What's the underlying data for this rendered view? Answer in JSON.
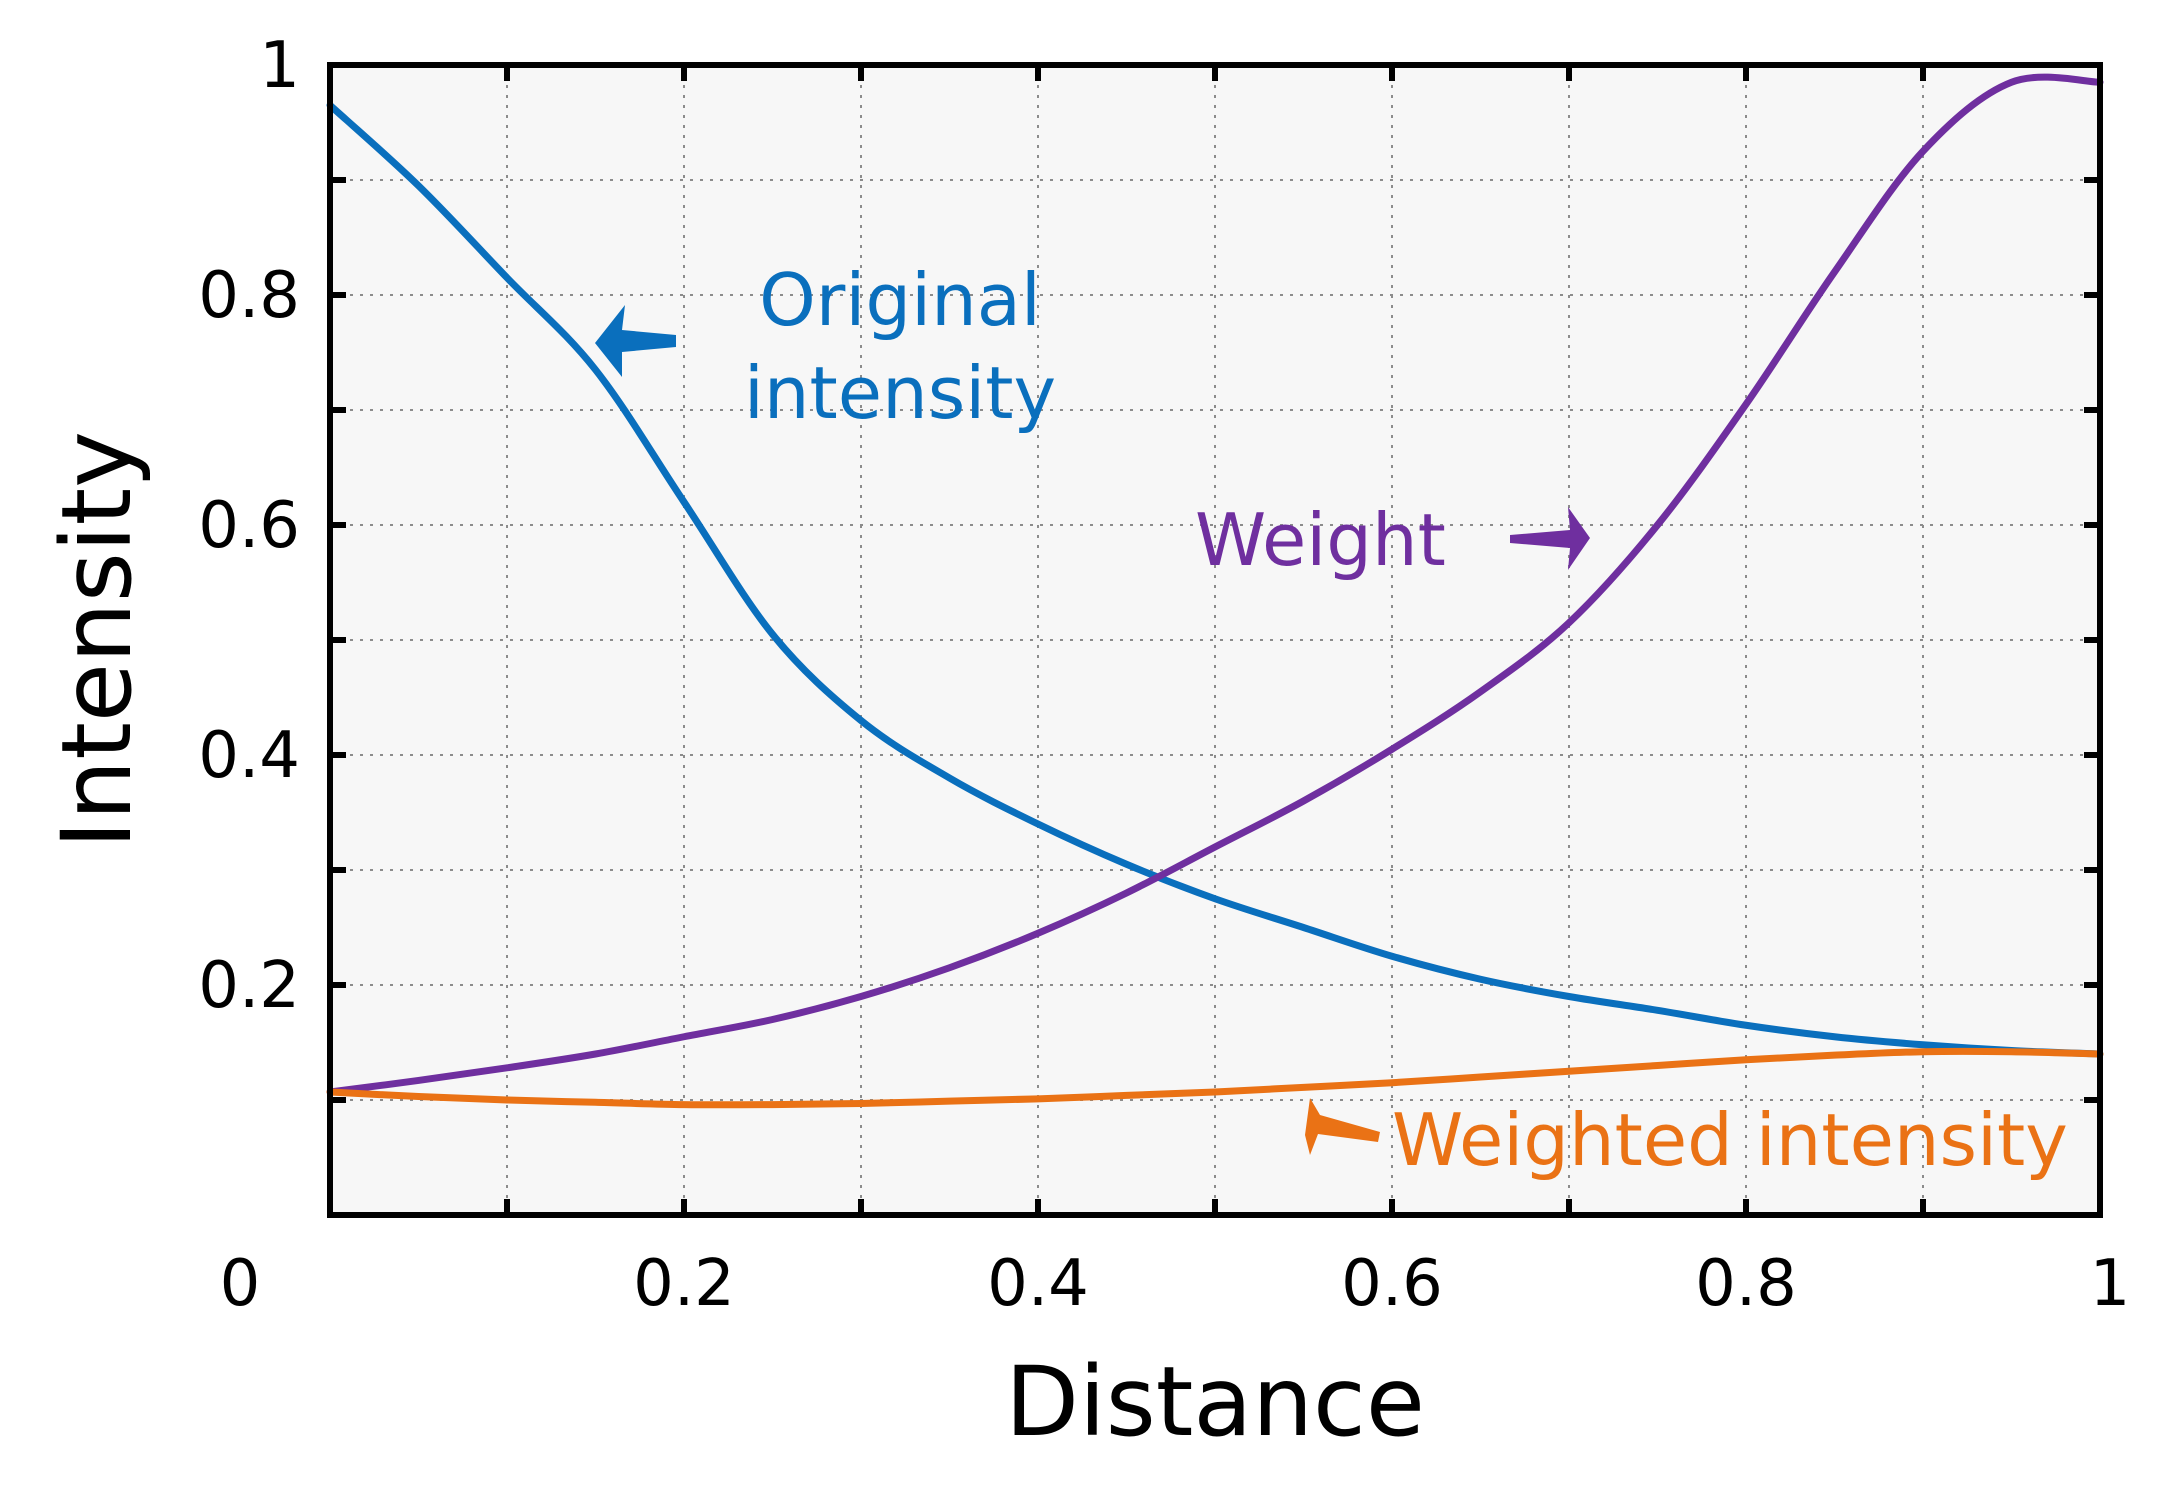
{
  "chart_data": {
    "type": "line",
    "title": "",
    "xlabel": "Distance",
    "ylabel": "Intensity",
    "xlim": [
      0,
      1
    ],
    "ylim": [
      0,
      1
    ],
    "grid": true,
    "x_ticks": [
      {
        "value": 0,
        "label": "0"
      },
      {
        "value": 0.2,
        "label": "0.2"
      },
      {
        "value": 0.4,
        "label": "0.4"
      },
      {
        "value": 0.6,
        "label": "0.6"
      },
      {
        "value": 0.8,
        "label": "0.8"
      },
      {
        "value": 1,
        "label": "1"
      }
    ],
    "y_ticks": [
      {
        "value": 0.2,
        "label": "0.2"
      },
      {
        "value": 0.4,
        "label": "0.4"
      },
      {
        "value": 0.6,
        "label": "0.6"
      },
      {
        "value": 0.8,
        "label": "0.8"
      },
      {
        "value": 1,
        "label": "1"
      }
    ],
    "minor_x": [
      0.1,
      0.3,
      0.5,
      0.7,
      0.9
    ],
    "minor_y": [
      0.1,
      0.3,
      0.5,
      0.7,
      0.9
    ],
    "series": [
      {
        "name": "Original intensity",
        "key": "original",
        "color": "#0a6fbd",
        "x": [
          0,
          0.05,
          0.1,
          0.15,
          0.2,
          0.25,
          0.3,
          0.35,
          0.4,
          0.45,
          0.5,
          0.55,
          0.6,
          0.65,
          0.7,
          0.75,
          0.8,
          0.85,
          0.9,
          0.95,
          1.0
        ],
        "y": [
          0.965,
          0.895,
          0.815,
          0.735,
          0.62,
          0.505,
          0.43,
          0.38,
          0.34,
          0.305,
          0.275,
          0.25,
          0.225,
          0.205,
          0.19,
          0.178,
          0.165,
          0.155,
          0.148,
          0.143,
          0.14
        ]
      },
      {
        "name": "Weight",
        "key": "weight",
        "color": "#6f2f9f",
        "x": [
          0,
          0.05,
          0.1,
          0.15,
          0.2,
          0.25,
          0.3,
          0.35,
          0.4,
          0.45,
          0.5,
          0.55,
          0.6,
          0.65,
          0.7,
          0.75,
          0.8,
          0.85,
          0.9,
          0.95,
          1.0
        ],
        "y": [
          0.107,
          0.117,
          0.128,
          0.14,
          0.155,
          0.17,
          0.19,
          0.215,
          0.245,
          0.28,
          0.32,
          0.36,
          0.405,
          0.455,
          0.515,
          0.6,
          0.705,
          0.82,
          0.925,
          0.985,
          0.985
        ]
      },
      {
        "name": "Weighted intensity",
        "key": "weighted",
        "color": "#ea7215",
        "x": [
          0,
          0.05,
          0.1,
          0.15,
          0.2,
          0.25,
          0.3,
          0.35,
          0.4,
          0.45,
          0.5,
          0.55,
          0.6,
          0.65,
          0.7,
          0.75,
          0.8,
          0.85,
          0.9,
          0.95,
          1.0
        ],
        "y": [
          0.107,
          0.103,
          0.1,
          0.098,
          0.096,
          0.096,
          0.097,
          0.099,
          0.101,
          0.104,
          0.107,
          0.111,
          0.115,
          0.12,
          0.125,
          0.13,
          0.135,
          0.139,
          0.142,
          0.142,
          0.14
        ]
      }
    ],
    "annotations": {
      "original_line1": "Original",
      "original_line2": "intensity",
      "weight": "Weight",
      "weighted": "Weighted intensity"
    }
  }
}
